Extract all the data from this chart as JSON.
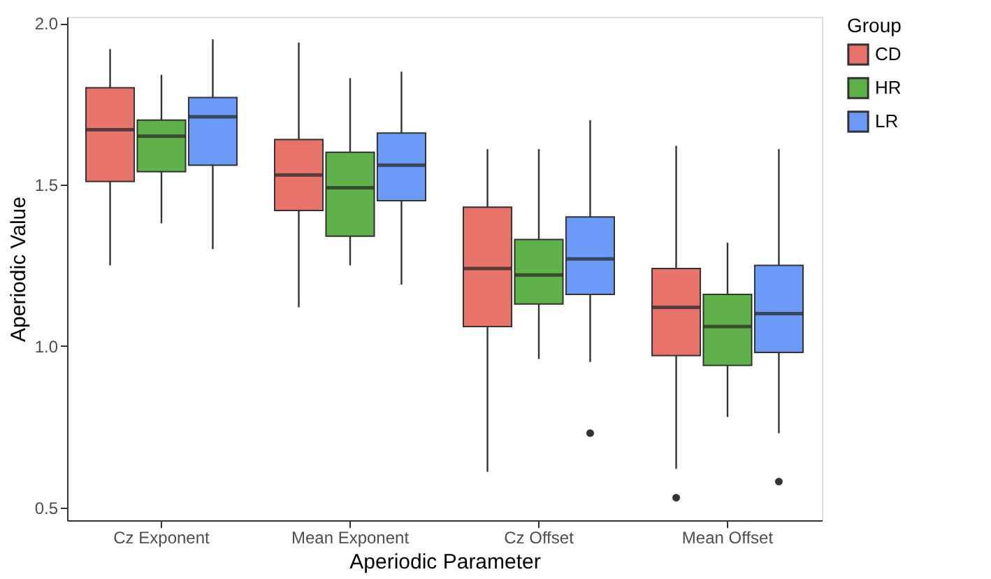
{
  "chart_data": {
    "type": "box",
    "xlabel": "Aperiodic Parameter",
    "ylabel": "Aperiodic Value",
    "legend_title": "Group",
    "legend": "right",
    "grid": false,
    "categories": [
      "Cz Exponent",
      "Mean Exponent",
      "Cz Offset",
      "Mean Offset"
    ],
    "ylim": [
      0.46,
      2.02
    ],
    "yticks": [
      {
        "value": 0.5,
        "label": "0.5"
      },
      {
        "value": 1.0,
        "label": "1.0"
      },
      {
        "value": 1.5,
        "label": "1.5"
      },
      {
        "value": 2.0,
        "label": "2.0"
      }
    ],
    "series": [
      {
        "name": "CD",
        "color": "#e8736b",
        "boxes": [
          {
            "low": 1.25,
            "q1": 1.51,
            "median": 1.67,
            "q3": 1.8,
            "high": 1.92
          },
          {
            "low": 1.12,
            "q1": 1.42,
            "median": 1.53,
            "q3": 1.64,
            "high": 1.94
          },
          {
            "low": 0.61,
            "q1": 1.06,
            "median": 1.24,
            "q3": 1.43,
            "high": 1.61
          },
          {
            "low": 0.62,
            "q1": 0.97,
            "median": 1.12,
            "q3": 1.24,
            "high": 1.62,
            "outliers": [
              0.53
            ]
          }
        ]
      },
      {
        "name": "HR",
        "color": "#5eb249",
        "boxes": [
          {
            "low": 1.38,
            "q1": 1.54,
            "median": 1.65,
            "q3": 1.7,
            "high": 1.84
          },
          {
            "low": 1.25,
            "q1": 1.34,
            "median": 1.49,
            "q3": 1.6,
            "high": 1.83
          },
          {
            "low": 0.96,
            "q1": 1.13,
            "median": 1.22,
            "q3": 1.33,
            "high": 1.61
          },
          {
            "low": 0.78,
            "q1": 0.94,
            "median": 1.06,
            "q3": 1.16,
            "high": 1.32
          }
        ]
      },
      {
        "name": "LR",
        "color": "#6b9bf7",
        "boxes": [
          {
            "low": 1.3,
            "q1": 1.56,
            "median": 1.71,
            "q3": 1.77,
            "high": 1.95
          },
          {
            "low": 1.19,
            "q1": 1.45,
            "median": 1.56,
            "q3": 1.66,
            "high": 1.85
          },
          {
            "low": 0.95,
            "q1": 1.16,
            "median": 1.27,
            "q3": 1.4,
            "high": 1.7,
            "outliers": [
              0.73
            ]
          },
          {
            "low": 0.73,
            "q1": 0.98,
            "median": 1.1,
            "q3": 1.25,
            "high": 1.61,
            "outliers": [
              0.58
            ]
          }
        ]
      }
    ]
  }
}
